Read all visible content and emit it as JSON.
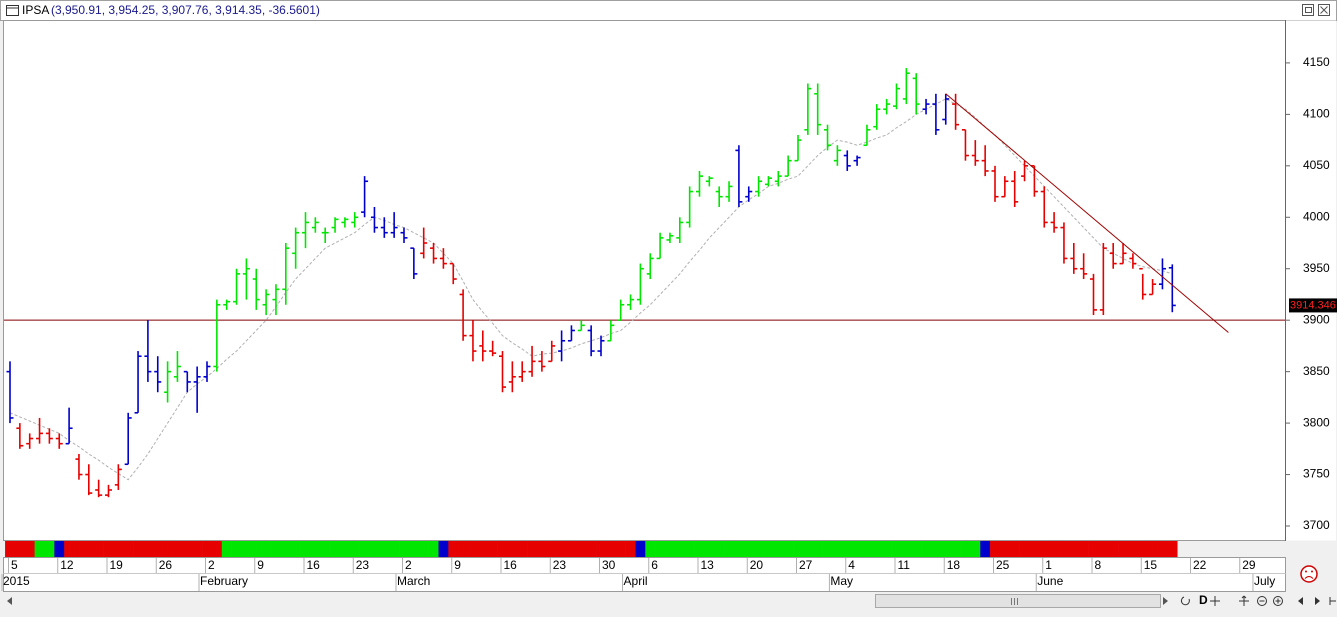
{
  "header": {
    "symbol": "IPSA",
    "quote": "(3,950.91, 3,954.25, 3,907.76, 3,914.35, -36.5601)"
  },
  "toolbar": {
    "period_button": "D"
  },
  "chart_data": {
    "type": "ohlc",
    "categories": [
      "5",
      null,
      null,
      null,
      null,
      "12",
      null,
      null,
      null,
      null,
      "19",
      null,
      null,
      null,
      null,
      "26",
      null,
      null,
      null,
      null,
      "2",
      null,
      null,
      null,
      null,
      "9",
      null,
      null,
      null,
      null,
      "16",
      null,
      null,
      null,
      null,
      "23",
      null,
      null,
      null,
      null,
      "2",
      null,
      null,
      null,
      null,
      "9",
      null,
      null,
      null,
      null,
      "16",
      null,
      null,
      null,
      null,
      "23",
      null,
      null,
      null,
      null,
      "30",
      null,
      null,
      null,
      null,
      "6",
      null,
      null,
      null,
      null,
      "13",
      null,
      null,
      null,
      null,
      "20",
      null,
      null,
      null,
      null,
      "27",
      null,
      null,
      null,
      null,
      "4",
      null,
      null,
      null,
      null,
      "11",
      null,
      null,
      null,
      null,
      "18",
      null,
      null,
      null,
      null,
      "25",
      null,
      null,
      null,
      null,
      "1",
      null,
      null,
      null,
      null,
      "8",
      null,
      null,
      null,
      null,
      "15",
      null,
      null,
      null,
      null,
      "22",
      null,
      null,
      null,
      null,
      "29",
      null,
      null,
      null,
      null
    ],
    "months": [
      "2015",
      null,
      null,
      null,
      null,
      null,
      null,
      null,
      null,
      null,
      null,
      null,
      null,
      null,
      null,
      null,
      null,
      null,
      null,
      null,
      "February",
      null,
      null,
      null,
      null,
      null,
      null,
      null,
      null,
      null,
      null,
      null,
      null,
      null,
      null,
      null,
      null,
      null,
      null,
      null,
      "March",
      null,
      null,
      null,
      null,
      null,
      null,
      null,
      null,
      null,
      null,
      null,
      null,
      null,
      null,
      null,
      null,
      null,
      null,
      null,
      null,
      null,
      null,
      "April",
      null,
      null,
      null,
      null,
      null,
      null,
      null,
      null,
      null,
      null,
      null,
      null,
      null,
      null,
      null,
      null,
      null,
      null,
      null,
      null,
      "May",
      null,
      null,
      null,
      null,
      null,
      null,
      null,
      null,
      null,
      null,
      null,
      null,
      null,
      null,
      null,
      null,
      null,
      null,
      null,
      null,
      "June",
      null,
      null,
      null,
      null,
      null,
      null,
      null,
      null,
      null,
      null,
      null,
      null,
      null,
      null,
      null,
      null,
      null,
      null,
      null,
      null,
      null,
      "July",
      null,
      null
    ],
    "open": [
      3850,
      3795,
      3780,
      3785,
      3790,
      3785,
      3780,
      3765,
      3750,
      3735,
      3730,
      3740,
      3760,
      3810,
      3865,
      3850,
      3830,
      3845,
      3850,
      3840,
      3845,
      3855,
      3915,
      3918,
      3945,
      3940,
      3915,
      3920,
      3930,
      3965,
      3985,
      3990,
      3985,
      3990,
      3995,
      3995,
      4005,
      4000,
      3990,
      3985,
      3985,
      3970,
      3965,
      3970,
      3960,
      3955,
      3925,
      3885,
      3875,
      3870,
      3865,
      3840,
      3845,
      3850,
      3860,
      3860,
      3870,
      3880,
      3890,
      3890,
      3870,
      3880,
      3900,
      3915,
      3920,
      3945,
      3960,
      3978,
      3980,
      3995,
      4025,
      4035,
      4025,
      4020,
      4065,
      4020,
      4025,
      4032,
      4035,
      4040,
      4055,
      4085,
      4120,
      4085,
      4055,
      4060,
      4055,
      4070,
      4088,
      4105,
      4108,
      4115,
      4135,
      4105,
      4110,
      4095,
      4110,
      4085,
      4060,
      4055,
      4045,
      4020,
      4035,
      4040,
      4050,
      4025,
      3995,
      3990,
      3960,
      3950,
      3940,
      3910,
      3965,
      3955,
      3960,
      3950,
      3925,
      3935,
      3950.91,
      null,
      null,
      null,
      null,
      null,
      null,
      null,
      null,
      null,
      null,
      null
    ],
    "high": [
      3860,
      3800,
      3790,
      3805,
      3795,
      3790,
      3815,
      3770,
      3760,
      3745,
      3740,
      3760,
      3810,
      3870,
      3900,
      3865,
      3860,
      3870,
      3850,
      3855,
      3860,
      3920,
      3920,
      3950,
      3960,
      3950,
      3930,
      3935,
      3975,
      3990,
      4005,
      4000,
      3990,
      4000,
      4000,
      4005,
      4040,
      4010,
      4000,
      4005,
      3990,
      3970,
      3990,
      3975,
      3970,
      3955,
      3930,
      3900,
      3890,
      3880,
      3870,
      3860,
      3860,
      3875,
      3870,
      3880,
      3890,
      3895,
      3900,
      3895,
      3885,
      3900,
      3920,
      3925,
      3955,
      3965,
      3985,
      3985,
      4000,
      4030,
      4045,
      4040,
      4030,
      4035,
      4070,
      4030,
      4040,
      4040,
      4045,
      4060,
      4080,
      4130,
      4130,
      4090,
      4070,
      4065,
      4060,
      4090,
      4110,
      4115,
      4130,
      4145,
      4140,
      4115,
      4120,
      4120,
      4120,
      4085,
      4075,
      4070,
      4050,
      4040,
      4045,
      4055,
      4050,
      4030,
      4005,
      3995,
      3975,
      3965,
      3945,
      3975,
      3975,
      3975,
      3965,
      3945,
      3940,
      3960,
      3954.25,
      null,
      null,
      null,
      null,
      null,
      null,
      null,
      null,
      null,
      null,
      null
    ],
    "low": [
      3800,
      3775,
      3775,
      3780,
      3780,
      3775,
      3780,
      3745,
      3730,
      3728,
      3728,
      3735,
      3760,
      3810,
      3840,
      3830,
      3820,
      3840,
      3830,
      3810,
      3840,
      3850,
      3910,
      3915,
      3920,
      3910,
      3905,
      3905,
      3915,
      3950,
      3970,
      3985,
      3975,
      3985,
      3990,
      3990,
      4000,
      3985,
      3980,
      3980,
      3975,
      3940,
      3960,
      3955,
      3950,
      3935,
      3880,
      3860,
      3860,
      3865,
      3830,
      3830,
      3840,
      3845,
      3850,
      3860,
      3860,
      3880,
      3890,
      3865,
      3865,
      3880,
      3900,
      3910,
      3915,
      3940,
      3960,
      3975,
      3975,
      3990,
      4020,
      4030,
      4010,
      4015,
      4010,
      4015,
      4020,
      4030,
      4030,
      4040,
      4055,
      4080,
      4080,
      4065,
      4050,
      4045,
      4050,
      4070,
      4085,
      4100,
      4105,
      4110,
      4100,
      4100,
      4080,
      4090,
      4085,
      4055,
      4050,
      4040,
      4015,
      4020,
      4010,
      4035,
      4020,
      3990,
      3985,
      3955,
      3945,
      3940,
      3905,
      3905,
      3950,
      3955,
      3950,
      3920,
      3925,
      3930,
      3907.76,
      null,
      null,
      null,
      null,
      null,
      null,
      null,
      null,
      null,
      null,
      null
    ],
    "close": [
      3805,
      3778,
      3785,
      3790,
      3785,
      3780,
      3795,
      3750,
      3732,
      3730,
      3735,
      3755,
      3805,
      3865,
      3850,
      3840,
      3850,
      3855,
      3840,
      3845,
      3855,
      3915,
      3918,
      3945,
      3950,
      3920,
      3925,
      3930,
      3970,
      3985,
      3995,
      3995,
      3985,
      3998,
      3998,
      4000,
      4035,
      3990,
      3985,
      3990,
      3980,
      3945,
      3975,
      3960,
      3955,
      3940,
      3885,
      3870,
      3870,
      3868,
      3835,
      3845,
      3850,
      3860,
      3855,
      3875,
      3880,
      3890,
      3895,
      3870,
      3880,
      3895,
      3915,
      3920,
      3950,
      3960,
      3980,
      3982,
      3995,
      4025,
      4040,
      4038,
      4020,
      4030,
      4015,
      4025,
      4035,
      4038,
      4040,
      4055,
      4075,
      4125,
      4090,
      4070,
      4065,
      4050,
      4058,
      4085,
      4105,
      4110,
      4125,
      4140,
      4110,
      4110,
      4085,
      4115,
      4090,
      4060,
      4055,
      4045,
      4020,
      4035,
      4015,
      4050,
      4025,
      3995,
      3990,
      3960,
      3950,
      3945,
      3910,
      3970,
      3955,
      3965,
      3955,
      3925,
      3935,
      3950,
      3914.35,
      null,
      null,
      null,
      null,
      null,
      null,
      null,
      null,
      null,
      null,
      null
    ],
    "bar_colors": [
      "b",
      "r",
      "r",
      "r",
      "r",
      "r",
      "b",
      "r",
      "r",
      "r",
      "r",
      "r",
      "b",
      "b",
      "b",
      "b",
      "g",
      "g",
      "b",
      "b",
      "b",
      "g",
      "g",
      "g",
      "g",
      "g",
      "g",
      "g",
      "g",
      "g",
      "g",
      "g",
      "g",
      "g",
      "g",
      "g",
      "b",
      "b",
      "b",
      "b",
      "b",
      "b",
      "r",
      "r",
      "r",
      "r",
      "r",
      "r",
      "r",
      "r",
      "r",
      "r",
      "r",
      "r",
      "r",
      "r",
      "b",
      "b",
      "g",
      "b",
      "b",
      "g",
      "g",
      "g",
      "g",
      "g",
      "g",
      "g",
      "g",
      "g",
      "g",
      "g",
      "g",
      "g",
      "b",
      "b",
      "g",
      "g",
      "g",
      "g",
      "g",
      "g",
      "g",
      "g",
      "g",
      "b",
      "b",
      "g",
      "g",
      "g",
      "g",
      "g",
      "g",
      "b",
      "b",
      "b",
      "r",
      "r",
      "r",
      "r",
      "r",
      "r",
      "r",
      "r",
      "r",
      "r",
      "r",
      "r",
      "r",
      "r",
      "r",
      "r",
      "r",
      "r",
      "r",
      "r",
      "r",
      "b",
      "b",
      null,
      null,
      null,
      null,
      null,
      null,
      null,
      null,
      null,
      null,
      null
    ],
    "signal": [
      "r",
      "r",
      "r",
      "g",
      "g",
      "b",
      "r",
      "r",
      "r",
      "r",
      "r",
      "r",
      "r",
      "r",
      "r",
      "r",
      "r",
      "r",
      "r",
      "r",
      "r",
      "r",
      "g",
      "g",
      "g",
      "g",
      "g",
      "g",
      "g",
      "g",
      "g",
      "g",
      "g",
      "g",
      "g",
      "g",
      "g",
      "g",
      "g",
      "g",
      "g",
      "g",
      "g",
      "g",
      "b",
      "r",
      "r",
      "r",
      "r",
      "r",
      "r",
      "r",
      "r",
      "r",
      "r",
      "r",
      "r",
      "r",
      "r",
      "r",
      "r",
      "r",
      "r",
      "r",
      "b",
      "g",
      "g",
      "g",
      "g",
      "g",
      "g",
      "g",
      "g",
      "g",
      "g",
      "g",
      "g",
      "g",
      "g",
      "g",
      "g",
      "g",
      "g",
      "g",
      "g",
      "g",
      "g",
      "g",
      "g",
      "g",
      "g",
      "g",
      "g",
      "g",
      "g",
      "g",
      "g",
      "g",
      "g",
      "b",
      "r",
      "r",
      "r",
      "r",
      "r",
      "r",
      "r",
      "r",
      "r",
      "r",
      "r",
      "r",
      "r",
      "r",
      "r",
      "r",
      "r",
      "r",
      "r",
      null,
      null,
      null,
      null,
      null,
      null,
      null,
      null,
      null,
      null,
      null
    ],
    "palette": {
      "r": "#e60000",
      "g": "#00e600",
      "b": "#0000cc"
    },
    "ma": [
      3810,
      3806,
      3802,
      3798,
      3794,
      3790,
      3783,
      3777,
      3770,
      3764,
      3757,
      3751,
      3745,
      3757,
      3770,
      3785,
      3800,
      3815,
      3830,
      3838,
      3845,
      3853,
      3862,
      3870,
      3880,
      3890,
      3900,
      3913,
      3927,
      3940,
      3950,
      3960,
      3970,
      3975,
      3980,
      3985,
      3993,
      4000,
      3997,
      3993,
      3990,
      3985,
      3980,
      3975,
      3965,
      3955,
      3938,
      3920,
      3908,
      3897,
      3885,
      3878,
      3872,
      3865,
      3867,
      3868,
      3870,
      3873,
      3877,
      3880,
      3883,
      3887,
      3890,
      3898,
      3907,
      3915,
      3925,
      3935,
      3945,
      3957,
      3968,
      3980,
      3990,
      4000,
      4010,
      4017,
      4023,
      4030,
      4033,
      4037,
      4040,
      4050,
      4060,
      4068,
      4075,
      4073,
      4070,
      4073,
      4077,
      4080,
      4087,
      4093,
      4100,
      4105,
      4110,
      4115,
      4110,
      4105,
      4097,
      4088,
      4080,
      4070,
      4060,
      4050,
      4040,
      4030,
      4020,
      4010,
      4000,
      3990,
      3980,
      3970,
      3965,
      3960,
      3955,
      3952,
      3950,
      3948,
      3945,
      null,
      null,
      null,
      null,
      null,
      null,
      null,
      null,
      null,
      null,
      null
    ],
    "ma_color": "#b0b0b0",
    "hline": 3900,
    "hline_color": "#800000",
    "trendline": [
      4120,
      3888
    ],
    "trendline_color": "#a00000",
    "last_price": 3914.346,
    "ylim": [
      3686.4,
      4191.7
    ],
    "yticks": [
      3700,
      3750,
      3800,
      3850,
      3900,
      3950,
      4000,
      4050,
      4100,
      4150
    ]
  }
}
